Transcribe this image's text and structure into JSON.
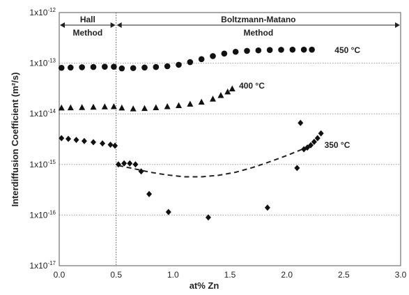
{
  "chart_data": {
    "type": "scatter",
    "xlabel": "at% Zn",
    "ylabel": "Interdiffusion Coefficient (m²/s)",
    "xlim": [
      0.0,
      3.0
    ],
    "ylim_log10": [
      -17,
      -12
    ],
    "y_scale": "log",
    "grid": "horizontal dotted",
    "x_ticks": [
      "0.0",
      "0.5",
      "1.0",
      "1.5",
      "2.0",
      "2.5",
      "3.0"
    ],
    "y_ticks": [
      {
        "base": "1x10",
        "exp": "-12"
      },
      {
        "base": "1x10",
        "exp": "-13"
      },
      {
        "base": "1x10",
        "exp": "-14"
      },
      {
        "base": "1x10",
        "exp": "-15"
      },
      {
        "base": "1x10",
        "exp": "-16"
      },
      {
        "base": "1x10",
        "exp": "-17"
      }
    ],
    "regions": [
      {
        "label_line1": "Hall",
        "label_line2": "Method",
        "x_range": [
          0.0,
          0.5
        ]
      },
      {
        "label_line1": "Boltzmann-Matano",
        "label_line2": "Method",
        "x_range": [
          0.5,
          3.0
        ]
      }
    ],
    "boundary_x": 0.5,
    "series": [
      {
        "name": "450 °C",
        "marker": "circle",
        "label_at": [
          2.42,
          1.8e-13
        ],
        "points": [
          [
            0.02,
            8.1e-14
          ],
          [
            0.1,
            8.2e-14
          ],
          [
            0.2,
            8.3e-14
          ],
          [
            0.3,
            8.4e-14
          ],
          [
            0.4,
            8.5e-14
          ],
          [
            0.48,
            8.5e-14
          ],
          [
            0.55,
            7.9e-14
          ],
          [
            0.65,
            8e-14
          ],
          [
            0.75,
            8.2e-14
          ],
          [
            0.85,
            8.4e-14
          ],
          [
            0.95,
            8.7e-14
          ],
          [
            1.05,
            9.3e-14
          ],
          [
            1.15,
            1.05e-13
          ],
          [
            1.25,
            1.2e-13
          ],
          [
            1.35,
            1.38e-13
          ],
          [
            1.45,
            1.55e-13
          ],
          [
            1.55,
            1.68e-13
          ],
          [
            1.65,
            1.75e-13
          ],
          [
            1.75,
            1.79e-13
          ],
          [
            1.85,
            1.82e-13
          ],
          [
            1.95,
            1.84e-13
          ],
          [
            2.05,
            1.85e-13
          ],
          [
            2.15,
            1.85e-13
          ],
          [
            2.22,
            1.85e-13
          ]
        ]
      },
      {
        "name": "400 °C",
        "marker": "triangle",
        "label_at": [
          1.58,
          3.6e-14
        ],
        "points": [
          [
            0.02,
            1.3e-14
          ],
          [
            0.1,
            1.31e-14
          ],
          [
            0.2,
            1.33e-14
          ],
          [
            0.3,
            1.35e-14
          ],
          [
            0.4,
            1.37e-14
          ],
          [
            0.48,
            1.38e-14
          ],
          [
            0.55,
            1.3e-14
          ],
          [
            0.65,
            1.25e-14
          ],
          [
            0.75,
            1.27e-14
          ],
          [
            0.85,
            1.32e-14
          ],
          [
            0.95,
            1.38e-14
          ],
          [
            1.05,
            1.45e-14
          ],
          [
            1.15,
            1.55e-14
          ],
          [
            1.25,
            1.7e-14
          ],
          [
            1.35,
            1.95e-14
          ],
          [
            1.42,
            2.3e-14
          ],
          [
            1.48,
            2.7e-14
          ],
          [
            1.52,
            3.1e-14
          ]
        ]
      },
      {
        "name": "350 °C",
        "marker": "diamond",
        "label_at": [
          2.33,
          2.4e-15
        ],
        "points": [
          [
            0.02,
            3.3e-15
          ],
          [
            0.08,
            3.2e-15
          ],
          [
            0.15,
            3.05e-15
          ],
          [
            0.22,
            2.9e-15
          ],
          [
            0.3,
            2.75e-15
          ],
          [
            0.38,
            2.6e-15
          ],
          [
            0.45,
            2.45e-15
          ],
          [
            0.49,
            2.35e-15
          ],
          [
            0.52,
            1e-15
          ],
          [
            0.57,
            1.05e-15
          ],
          [
            0.62,
            1.05e-15
          ],
          [
            0.67,
            1e-15
          ],
          [
            0.72,
            7.3e-16
          ],
          [
            0.79,
            2.6e-16
          ],
          [
            0.96,
            1.15e-16
          ],
          [
            1.31,
            9e-17
          ],
          [
            1.83,
            1.4e-16
          ],
          [
            2.09,
            8.5e-16
          ],
          [
            2.12,
            6.6e-15
          ],
          [
            2.15,
            2e-15
          ],
          [
            2.18,
            2.15e-15
          ],
          [
            2.21,
            2.4e-15
          ],
          [
            2.24,
            2.8e-15
          ],
          [
            2.27,
            3.3e-15
          ],
          [
            2.3,
            4.1e-15
          ]
        ],
        "fit_curve": [
          [
            0.52,
            9.5e-16
          ],
          [
            0.65,
            8.3e-16
          ],
          [
            0.8,
            7e-16
          ],
          [
            0.95,
            6.2e-16
          ],
          [
            1.1,
            5.7e-16
          ],
          [
            1.25,
            5.7e-16
          ],
          [
            1.4,
            6.1e-16
          ],
          [
            1.55,
            7e-16
          ],
          [
            1.7,
            8.7e-16
          ],
          [
            1.85,
            1.13e-15
          ],
          [
            2.0,
            1.5e-15
          ],
          [
            2.1,
            1.85e-15
          ],
          [
            2.2,
            2.3e-15
          ]
        ]
      }
    ]
  }
}
